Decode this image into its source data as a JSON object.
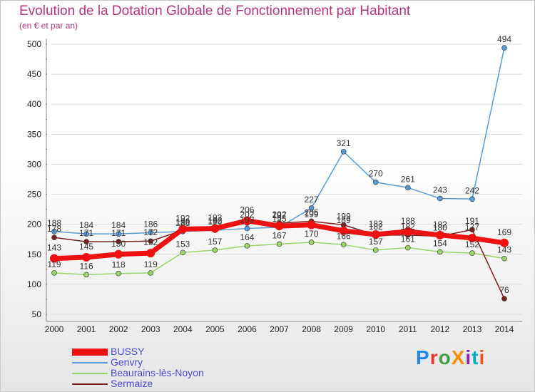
{
  "title": "Evolution de la Dotation Globale de Fonctionnement par Habitant",
  "subtitle": "(en € et par an)",
  "brand": "ProXiti",
  "chart_data": {
    "type": "line",
    "title": "Evolution de la Dotation Globale de Fonctionnement par Habitant",
    "ylabel": "(en € et par an)",
    "xlabel": "",
    "ylim": [
      50,
      500
    ],
    "yticks": [
      50,
      100,
      150,
      200,
      250,
      300,
      350,
      400,
      450,
      500
    ],
    "categories": [
      "2000",
      "2001",
      "2002",
      "2003",
      "2004",
      "2005",
      "2006",
      "2007",
      "2008",
      "2009",
      "2010",
      "2011",
      "2012",
      "2013",
      "2014"
    ],
    "series": [
      {
        "name": "Genvry",
        "color": "#5b9bd5",
        "values": [
          188,
          184,
          184,
          186,
          188,
          190,
          193,
          195,
          227,
          321,
          270,
          261,
          243,
          242,
          494
        ]
      },
      {
        "name": "Beaurains-lès-Noyon",
        "color": "#9ad36a",
        "values": [
          119,
          116,
          118,
          119,
          153,
          157,
          164,
          167,
          170,
          166,
          157,
          161,
          154,
          152,
          143
        ]
      },
      {
        "name": "Sermaize",
        "color": "#7b2020",
        "values": [
          178,
          171,
          171,
          172,
          190,
          192,
          202,
          202,
          205,
          199,
          182,
          182,
          180,
          191,
          76
        ]
      },
      {
        "name": "BUSSY",
        "color": "#ee1111",
        "values": [
          143,
          145,
          150,
          152,
          192,
          193,
          206,
          197,
          199,
          189,
          183,
          188,
          182,
          177,
          169
        ]
      }
    ]
  }
}
